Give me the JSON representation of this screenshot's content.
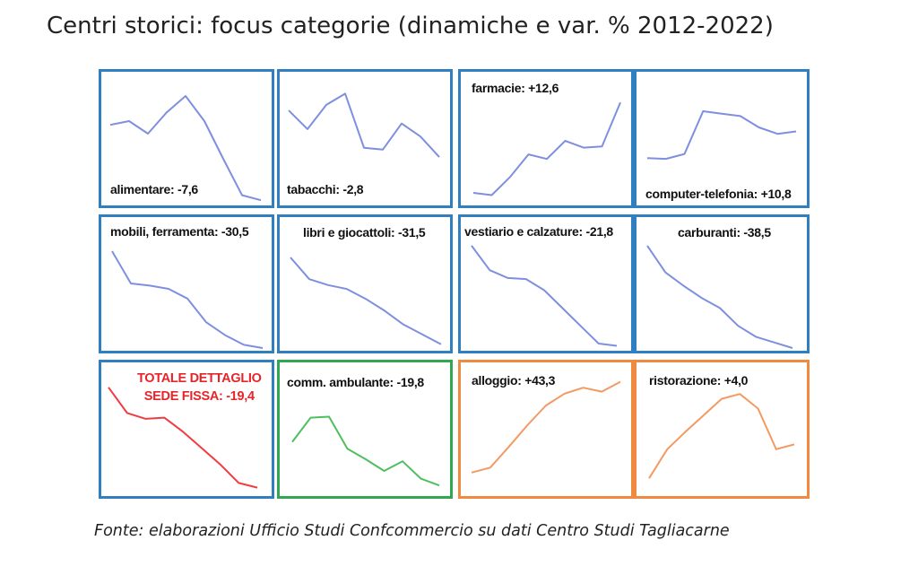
{
  "title": "Centri storici: focus categorie (dinamiche e var. % 2012-2022)",
  "source": "Fonte: elaborazioni Ufficio Studi Confcommercio su dati Centro Studi Tagliacarne",
  "chart_data": [
    {
      "type": "line",
      "title": "alimentare: -7,6",
      "border_color": "#2f7fc1",
      "line_color": "#7f8fe0",
      "values": [
        0.62,
        0.65,
        0.55,
        0.72,
        0.85,
        0.65,
        0.35,
        0.06,
        0.02
      ]
    },
    {
      "type": "line",
      "title": "tabacchi: -2,8",
      "border_color": "#2f7fc1",
      "line_color": "#7f8fe0",
      "values": [
        0.72,
        0.52,
        0.78,
        0.9,
        0.32,
        0.3,
        0.58,
        0.44,
        0.22
      ]
    },
    {
      "type": "line",
      "title": "farmacie: +12,6",
      "border_color": "#2f7fc1",
      "line_color": "#7f8fe0",
      "values": [
        0.04,
        0.02,
        0.18,
        0.38,
        0.34,
        0.5,
        0.44,
        0.45,
        0.84
      ]
    },
    {
      "type": "line",
      "title": "computer-telefonia: +10,8",
      "border_color": "#2f7fc1",
      "line_color": "#7f8fe0",
      "values": [
        0.22,
        0.21,
        0.27,
        0.8,
        0.77,
        0.74,
        0.6,
        0.52,
        0.55
      ]
    },
    {
      "type": "line",
      "title": "mobili, ferramenta: -30,5",
      "border_color": "#2f7fc1",
      "line_color": "#7f8fe0",
      "values": [
        0.9,
        0.6,
        0.58,
        0.55,
        0.46,
        0.24,
        0.12,
        0.03,
        0.0
      ]
    },
    {
      "type": "line",
      "title": "libri e giocattoli: -31,5",
      "border_color": "#2f7fc1",
      "line_color": "#7f8fe0",
      "values": [
        0.9,
        0.68,
        0.62,
        0.58,
        0.48,
        0.36,
        0.22,
        0.12,
        0.02
      ]
    },
    {
      "type": "line",
      "title": "vestiario e calzature: -21,8",
      "border_color": "#2f7fc1",
      "line_color": "#7f8fe0",
      "values": [
        0.92,
        0.7,
        0.63,
        0.62,
        0.52,
        0.36,
        0.2,
        0.04,
        0.02
      ]
    },
    {
      "type": "line",
      "title": "carburanti: -38,5",
      "border_color": "#2f7fc1",
      "line_color": "#7f8fe0",
      "values": [
        0.92,
        0.68,
        0.56,
        0.45,
        0.36,
        0.2,
        0.1,
        0.05,
        0.0
      ]
    },
    {
      "type": "line",
      "title": "TOTALE DETTAGLIO",
      "subtitle": "SEDE FISSA: -19,4",
      "border_color": "#2f7fc1",
      "line_color": "#ef3d42",
      "values": [
        0.94,
        0.72,
        0.67,
        0.68,
        0.56,
        0.42,
        0.28,
        0.12,
        0.08
      ]
    },
    {
      "type": "line",
      "title": "comm. ambulante: -19,8",
      "border_color": "#2fa84f",
      "line_color": "#4fbf5f",
      "values": [
        0.55,
        0.8,
        0.81,
        0.48,
        0.37,
        0.25,
        0.35,
        0.17,
        0.1
      ]
    },
    {
      "type": "line",
      "title": "alloggio: +43,3",
      "border_color": "#ef8a3e",
      "line_color": "#f39a63",
      "values": [
        0.12,
        0.17,
        0.38,
        0.6,
        0.8,
        0.92,
        0.98,
        0.94,
        1.04
      ]
    },
    {
      "type": "line",
      "title": "ristorazione: +4,0",
      "border_color": "#ef8a3e",
      "line_color": "#f39a63",
      "values": [
        0.1,
        0.4,
        0.58,
        0.75,
        0.92,
        0.97,
        0.82,
        0.4,
        0.45
      ]
    }
  ]
}
